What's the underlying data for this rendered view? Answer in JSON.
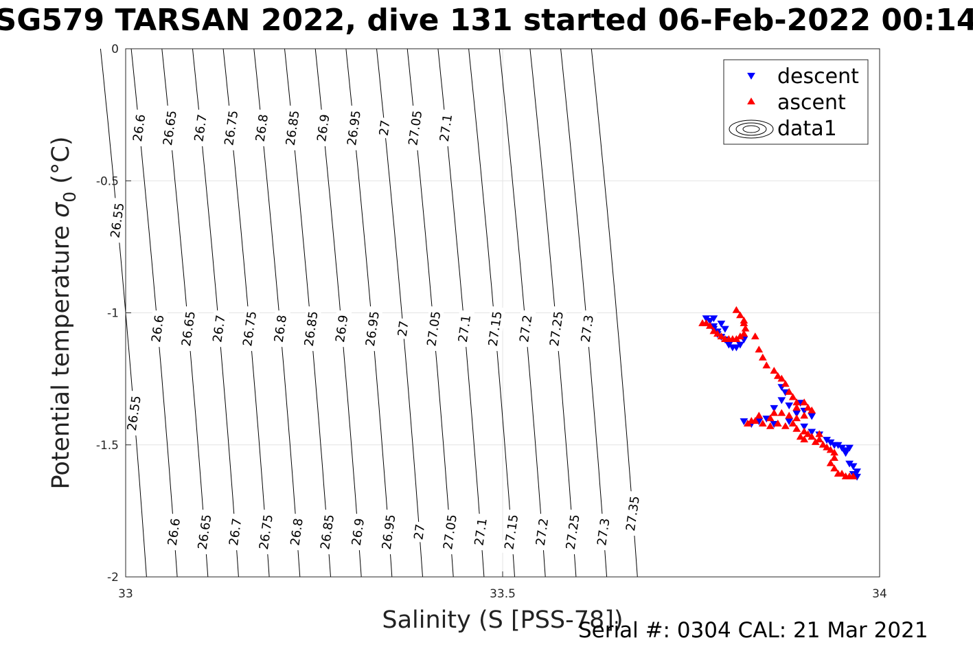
{
  "title": "SG579 TARSAN 2022, dive 131 started 06-Feb-2022 00:14",
  "footer": "Serial #: 0304  CAL: 21 Mar 2021",
  "chart_data": {
    "type": "scatter",
    "title": "SG579 TARSAN 2022, dive 131 started 06-Feb-2022 00:14",
    "xlabel": "Salinity (S [PSS-78])",
    "ylabel_main": "Potential temperature ",
    "ylabel_sigma": "σ",
    "ylabel_sub": "0",
    "ylabel_unit": " (°C)",
    "xlim": [
      33,
      34
    ],
    "ylim": [
      -2,
      0
    ],
    "xticks": [
      33,
      33.5,
      34
    ],
    "xtick_labels": [
      "33",
      "33.5",
      "34"
    ],
    "yticks": [
      0,
      -0.5,
      -1,
      -1.5,
      -2
    ],
    "ytick_labels": [
      "0",
      "-0.5",
      "-1",
      "-1.5",
      "-2"
    ],
    "grid": true,
    "legend_position": "top-right",
    "legend": [
      {
        "name": "descent",
        "marker": "triangle-down",
        "color": "#0000ff"
      },
      {
        "name": "ascent",
        "marker": "triangle-up",
        "color": "#ff0000"
      },
      {
        "name": "data1",
        "marker": "contour"
      }
    ],
    "contours": {
      "levels": [
        26.55,
        26.6,
        26.65,
        26.7,
        26.75,
        26.8,
        26.85,
        26.9,
        26.95,
        27.0,
        27.05,
        27.1,
        27.15,
        27.2,
        27.25,
        27.3,
        27.35
      ],
      "labels": [
        {
          "level": 26.55,
          "text": "26.55",
          "t": -0.65
        },
        {
          "level": 26.55,
          "text": "26.55",
          "t": -1.38
        },
        {
          "level": 26.6,
          "text": "26.6",
          "t": -0.3
        },
        {
          "level": 26.6,
          "text": "26.6",
          "t": -1.06
        },
        {
          "level": 26.6,
          "text": "26.6",
          "t": -1.83
        },
        {
          "level": 26.65,
          "text": "26.65",
          "t": -0.3
        },
        {
          "level": 26.65,
          "text": "26.65",
          "t": -1.06
        },
        {
          "level": 26.65,
          "text": "26.65",
          "t": -1.83
        },
        {
          "level": 26.7,
          "text": "26.7",
          "t": -0.3
        },
        {
          "level": 26.7,
          "text": "26.7",
          "t": -1.06
        },
        {
          "level": 26.7,
          "text": "26.7",
          "t": -1.83
        },
        {
          "level": 26.75,
          "text": "26.75",
          "t": -0.3
        },
        {
          "level": 26.75,
          "text": "26.75",
          "t": -1.06
        },
        {
          "level": 26.75,
          "text": "26.75",
          "t": -1.83
        },
        {
          "level": 26.8,
          "text": "26.8",
          "t": -0.3
        },
        {
          "level": 26.8,
          "text": "26.8",
          "t": -1.06
        },
        {
          "level": 26.8,
          "text": "26.8",
          "t": -1.83
        },
        {
          "level": 26.85,
          "text": "26.85",
          "t": -0.3
        },
        {
          "level": 26.85,
          "text": "26.85",
          "t": -1.06
        },
        {
          "level": 26.85,
          "text": "26.85",
          "t": -1.83
        },
        {
          "level": 26.9,
          "text": "26.9",
          "t": -0.3
        },
        {
          "level": 26.9,
          "text": "26.9",
          "t": -1.06
        },
        {
          "level": 26.9,
          "text": "26.9",
          "t": -1.83
        },
        {
          "level": 26.95,
          "text": "26.95",
          "t": -0.3
        },
        {
          "level": 26.95,
          "text": "26.95",
          "t": -1.06
        },
        {
          "level": 26.95,
          "text": "26.95",
          "t": -1.83
        },
        {
          "level": 27.0,
          "text": "27",
          "t": -0.3
        },
        {
          "level": 27.0,
          "text": "27",
          "t": -1.06
        },
        {
          "level": 27.0,
          "text": "27",
          "t": -1.83
        },
        {
          "level": 27.05,
          "text": "27.05",
          "t": -0.3
        },
        {
          "level": 27.05,
          "text": "27.05",
          "t": -1.06
        },
        {
          "level": 27.05,
          "text": "27.05",
          "t": -1.83
        },
        {
          "level": 27.1,
          "text": "27.1",
          "t": -0.3
        },
        {
          "level": 27.1,
          "text": "27.1",
          "t": -1.06
        },
        {
          "level": 27.1,
          "text": "27.1",
          "t": -1.83
        },
        {
          "level": 27.15,
          "text": "27.15",
          "t": -1.06
        },
        {
          "level": 27.15,
          "text": "27.15",
          "t": -1.83
        },
        {
          "level": 27.2,
          "text": "27.2",
          "t": -1.06
        },
        {
          "level": 27.2,
          "text": "27.2",
          "t": -1.83
        },
        {
          "level": 27.25,
          "text": "27.25",
          "t": -1.06
        },
        {
          "level": 27.25,
          "text": "27.25",
          "t": -1.83
        },
        {
          "level": 27.3,
          "text": "27.3",
          "t": -1.06
        },
        {
          "level": 27.3,
          "text": "27.3",
          "t": -1.83
        },
        {
          "level": 27.35,
          "text": "27.35",
          "t": -1.76
        }
      ]
    },
    "series": [
      {
        "name": "descent",
        "marker": "triangle-down",
        "color": "#0000ff",
        "points": [
          [
            33.77,
            -1.02
          ],
          [
            33.78,
            -1.02
          ],
          [
            33.775,
            -1.03
          ],
          [
            33.78,
            -1.05
          ],
          [
            33.78,
            -1.06
          ],
          [
            33.785,
            -1.07
          ],
          [
            33.785,
            -1.08
          ],
          [
            33.79,
            -1.09
          ],
          [
            33.795,
            -1.1
          ],
          [
            33.8,
            -1.11
          ],
          [
            33.8,
            -1.12
          ],
          [
            33.805,
            -1.13
          ],
          [
            33.81,
            -1.13
          ],
          [
            33.815,
            -1.12
          ],
          [
            33.82,
            -1.1
          ],
          [
            33.79,
            -1.04
          ],
          [
            33.795,
            -1.06
          ],
          [
            33.87,
            -1.28
          ],
          [
            33.87,
            -1.33
          ],
          [
            33.875,
            -1.3
          ],
          [
            33.88,
            -1.35
          ],
          [
            33.89,
            -1.38
          ],
          [
            33.86,
            -1.36
          ],
          [
            33.85,
            -1.4
          ],
          [
            33.84,
            -1.41
          ],
          [
            33.86,
            -1.42
          ],
          [
            33.83,
            -1.42
          ],
          [
            33.82,
            -1.41
          ],
          [
            33.88,
            -1.41
          ],
          [
            33.9,
            -1.43
          ],
          [
            33.91,
            -1.45
          ],
          [
            33.92,
            -1.46
          ],
          [
            33.93,
            -1.48
          ],
          [
            33.935,
            -1.49
          ],
          [
            33.94,
            -1.5
          ],
          [
            33.945,
            -1.5
          ],
          [
            33.95,
            -1.51
          ],
          [
            33.955,
            -1.52
          ],
          [
            33.96,
            -1.51
          ],
          [
            33.955,
            -1.53
          ],
          [
            33.96,
            -1.57
          ],
          [
            33.965,
            -1.58
          ],
          [
            33.965,
            -1.61
          ],
          [
            33.97,
            -1.62
          ],
          [
            33.97,
            -1.6
          ],
          [
            33.91,
            -1.39
          ],
          [
            33.9,
            -1.37
          ],
          [
            33.895,
            -1.34
          ]
        ]
      },
      {
        "name": "ascent",
        "marker": "triangle-up",
        "color": "#ff0000",
        "points": [
          [
            33.765,
            -1.04
          ],
          [
            33.77,
            -1.04
          ],
          [
            33.775,
            -1.05
          ],
          [
            33.78,
            -1.07
          ],
          [
            33.785,
            -1.08
          ],
          [
            33.79,
            -1.09
          ],
          [
            33.795,
            -1.1
          ],
          [
            33.8,
            -1.1
          ],
          [
            33.805,
            -1.1
          ],
          [
            33.81,
            -1.1
          ],
          [
            33.815,
            -1.09
          ],
          [
            33.82,
            -1.08
          ],
          [
            33.822,
            -1.06
          ],
          [
            33.82,
            -1.03
          ],
          [
            33.815,
            -1.01
          ],
          [
            33.81,
            -0.99
          ],
          [
            33.82,
            -1.04
          ],
          [
            33.835,
            -1.09
          ],
          [
            33.84,
            -1.14
          ],
          [
            33.845,
            -1.17
          ],
          [
            33.85,
            -1.2
          ],
          [
            33.86,
            -1.22
          ],
          [
            33.865,
            -1.24
          ],
          [
            33.87,
            -1.25
          ],
          [
            33.875,
            -1.27
          ],
          [
            33.88,
            -1.3
          ],
          [
            33.885,
            -1.32
          ],
          [
            33.89,
            -1.34
          ],
          [
            33.89,
            -1.36
          ],
          [
            33.9,
            -1.34
          ],
          [
            33.905,
            -1.36
          ],
          [
            33.91,
            -1.37
          ],
          [
            33.9,
            -1.39
          ],
          [
            33.89,
            -1.4
          ],
          [
            33.88,
            -1.39
          ],
          [
            33.87,
            -1.38
          ],
          [
            33.86,
            -1.38
          ],
          [
            33.855,
            -1.4
          ],
          [
            33.84,
            -1.39
          ],
          [
            33.83,
            -1.41
          ],
          [
            33.825,
            -1.42
          ],
          [
            33.835,
            -1.41
          ],
          [
            33.845,
            -1.42
          ],
          [
            33.855,
            -1.43
          ],
          [
            33.865,
            -1.42
          ],
          [
            33.875,
            -1.43
          ],
          [
            33.885,
            -1.42
          ],
          [
            33.89,
            -1.44
          ],
          [
            33.9,
            -1.45
          ],
          [
            33.905,
            -1.46
          ],
          [
            33.91,
            -1.47
          ],
          [
            33.92,
            -1.48
          ],
          [
            33.925,
            -1.5
          ],
          [
            33.93,
            -1.51
          ],
          [
            33.935,
            -1.52
          ],
          [
            33.94,
            -1.53
          ],
          [
            33.94,
            -1.55
          ],
          [
            33.935,
            -1.57
          ],
          [
            33.94,
            -1.59
          ],
          [
            33.945,
            -1.61
          ],
          [
            33.95,
            -1.61
          ],
          [
            33.955,
            -1.62
          ],
          [
            33.96,
            -1.62
          ],
          [
            33.965,
            -1.62
          ],
          [
            33.92,
            -1.46
          ],
          [
            33.915,
            -1.49
          ],
          [
            33.9,
            -1.48
          ],
          [
            33.895,
            -1.47
          ]
        ]
      }
    ]
  }
}
